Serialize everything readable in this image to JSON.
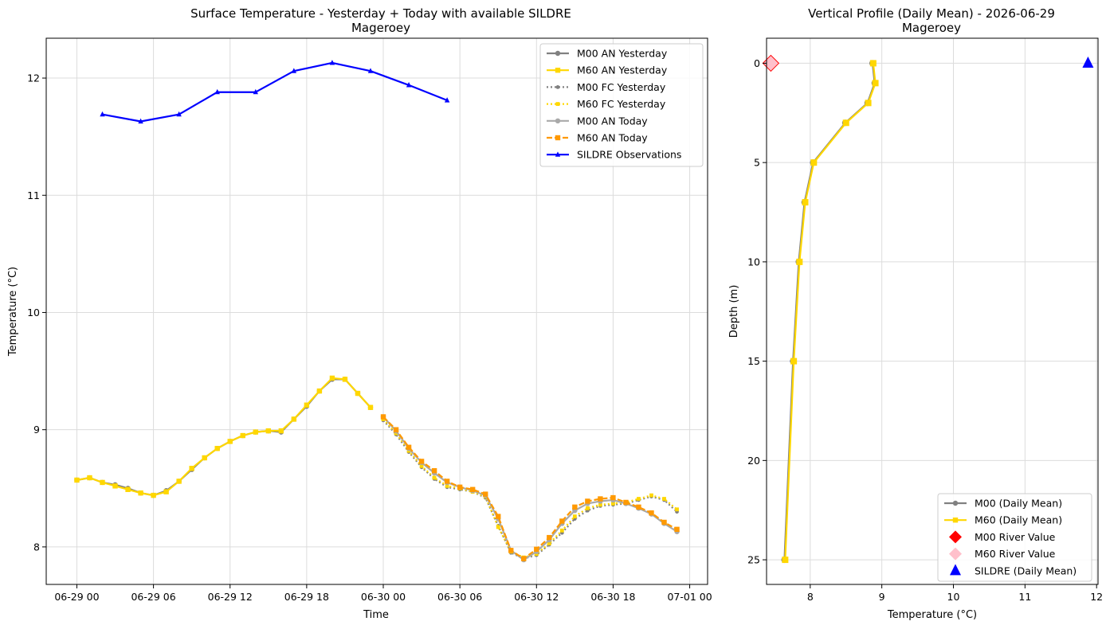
{
  "chart_data": [
    {
      "type": "line",
      "title": "Surface Temperature - Yesterday + Today with available SILDRE",
      "subtitle": "Mageroey",
      "xlabel": "Time",
      "ylabel": "Temperature (°C)",
      "x_unit": "hours from 06-29 00:00",
      "xlim": [
        -2.4,
        49.4
      ],
      "ylim": [
        7.68,
        12.34
      ],
      "x_ticks": [
        0,
        6,
        12,
        18,
        24,
        30,
        36,
        42,
        48
      ],
      "x_tick_labels": [
        "06-29 00",
        "06-29 06",
        "06-29 12",
        "06-29 18",
        "06-30 00",
        "06-30 06",
        "06-30 12",
        "06-30 18",
        "07-01 00"
      ],
      "y_ticks": [
        8,
        9,
        10,
        11,
        12
      ],
      "grid": true,
      "legend_position": "top-right",
      "series": [
        {
          "name": "M00 AN Yesterday",
          "color": "#808080",
          "dash": "solid",
          "marker": "circle",
          "x": [
            0,
            1,
            2,
            3,
            4,
            5,
            6,
            7,
            8,
            9,
            10,
            11,
            12,
            13,
            14,
            15,
            16,
            17,
            18,
            19,
            20,
            21,
            22,
            23
          ],
          "y": [
            8.57,
            8.59,
            8.55,
            8.53,
            8.5,
            8.46,
            8.44,
            8.48,
            8.56,
            8.66,
            8.76,
            8.84,
            8.9,
            8.95,
            8.98,
            8.99,
            8.98,
            9.09,
            9.2,
            9.33,
            9.43,
            9.43,
            9.31,
            9.19
          ]
        },
        {
          "name": "M60 AN Yesterday",
          "color": "#FFD700",
          "dash": "solid",
          "marker": "square",
          "x": [
            0,
            1,
            2,
            3,
            4,
            5,
            6,
            7,
            8,
            9,
            10,
            11,
            12,
            13,
            14,
            15,
            16,
            17,
            18,
            19,
            20,
            21,
            22,
            23
          ],
          "y": [
            8.57,
            8.59,
            8.55,
            8.52,
            8.49,
            8.46,
            8.44,
            8.47,
            8.56,
            8.67,
            8.76,
            8.84,
            8.9,
            8.95,
            8.98,
            8.99,
            8.99,
            9.09,
            9.21,
            9.33,
            9.44,
            9.43,
            9.31,
            9.19
          ]
        },
        {
          "name": "M00 FC Yesterday",
          "color": "#808080",
          "dash": "dotted",
          "marker": "circle",
          "x": [
            24,
            25,
            26,
            27,
            28,
            29,
            30,
            31,
            32,
            33,
            34,
            35,
            36,
            37,
            38,
            39,
            40,
            41,
            42,
            43,
            44,
            45,
            46,
            47
          ],
          "y": [
            9.08,
            8.96,
            8.81,
            8.68,
            8.58,
            8.51,
            8.49,
            8.47,
            8.42,
            8.18,
            7.95,
            7.9,
            7.93,
            8.02,
            8.12,
            8.24,
            8.31,
            8.35,
            8.36,
            8.37,
            8.4,
            8.43,
            8.4,
            8.3
          ]
        },
        {
          "name": "M60 FC Yesterday",
          "color": "#FFD700",
          "dash": "dotted",
          "marker": "square",
          "x": [
            24,
            25,
            26,
            27,
            28,
            29,
            30,
            31,
            32,
            33,
            34,
            35,
            36,
            37,
            38,
            39,
            40,
            41,
            42,
            43,
            44,
            45,
            46,
            47
          ],
          "y": [
            9.09,
            8.97,
            8.82,
            8.69,
            8.59,
            8.52,
            8.5,
            8.47,
            8.43,
            8.17,
            7.96,
            7.91,
            7.94,
            8.03,
            8.14,
            8.26,
            8.33,
            8.36,
            8.37,
            8.38,
            8.41,
            8.44,
            8.41,
            8.32
          ]
        },
        {
          "name": "M00 AN Today",
          "color": "#A9A9A9",
          "dash": "solid",
          "marker": "circle",
          "x": [
            24,
            25,
            26,
            27,
            28,
            29,
            30,
            31,
            32,
            33,
            34,
            35,
            36,
            37,
            38,
            39,
            40,
            41,
            42,
            43,
            44,
            45,
            46,
            47
          ],
          "y": [
            9.11,
            8.99,
            8.84,
            8.72,
            8.63,
            8.55,
            8.51,
            8.48,
            8.44,
            8.24,
            7.97,
            7.89,
            7.96,
            8.06,
            8.2,
            8.31,
            8.37,
            8.39,
            8.4,
            8.37,
            8.33,
            8.28,
            8.2,
            8.13
          ]
        },
        {
          "name": "M60 AN Today",
          "color": "#FF9900",
          "dash": "dashed",
          "marker": "square",
          "x": [
            24,
            25,
            26,
            27,
            28,
            29,
            30,
            31,
            32,
            33,
            34,
            35,
            36,
            37,
            38,
            39,
            40,
            41,
            42,
            43,
            44,
            45,
            46,
            47
          ],
          "y": [
            9.11,
            9.0,
            8.85,
            8.73,
            8.65,
            8.56,
            8.51,
            8.49,
            8.45,
            8.26,
            7.97,
            7.9,
            7.98,
            8.08,
            8.22,
            8.34,
            8.39,
            8.41,
            8.42,
            8.38,
            8.34,
            8.29,
            8.21,
            8.15
          ]
        },
        {
          "name": "SILDRE Observations",
          "color": "#0000FF",
          "dash": "solid",
          "marker": "triangle",
          "x": [
            2,
            5,
            8,
            11,
            14,
            17,
            20,
            23,
            26,
            29
          ],
          "y": [
            11.69,
            11.63,
            11.69,
            11.88,
            11.88,
            12.06,
            12.13,
            12.06,
            11.94,
            11.81
          ]
        }
      ]
    },
    {
      "type": "line",
      "title": "Vertical Profile (Daily Mean) - 2026-06-29",
      "subtitle": "Mageroey",
      "xlabel": "Temperature (°C)",
      "ylabel": "Depth (m)",
      "xlim": [
        7.39,
        12.02
      ],
      "ylim": [
        26.24,
        -1.26
      ],
      "y_inverted": true,
      "x_ticks": [
        8,
        9,
        10,
        11,
        12
      ],
      "y_ticks": [
        0,
        5,
        10,
        15,
        20,
        25
      ],
      "grid": true,
      "legend_position": "bottom-right",
      "series": [
        {
          "name": "M00 (Daily Mean)",
          "color": "#808080",
          "marker": "circle",
          "x": [
            8.87,
            8.9,
            8.8,
            8.49,
            8.04,
            7.92,
            7.84,
            7.76,
            7.64
          ],
          "depth": [
            0,
            1,
            2,
            3,
            5,
            7,
            10,
            15,
            25
          ]
        },
        {
          "name": "M60 (Daily Mean)",
          "color": "#FFD700",
          "marker": "square",
          "x": [
            8.88,
            8.91,
            8.81,
            8.5,
            8.05,
            7.93,
            7.85,
            7.77,
            7.65
          ],
          "depth": [
            0,
            1,
            2,
            3,
            5,
            7,
            10,
            15,
            25
          ]
        }
      ],
      "points": [
        {
          "name": "M00 River Value",
          "color": "#FF0000",
          "marker": "diamond",
          "x": 7.45,
          "depth": 0,
          "hidden": true
        },
        {
          "name": "M60 River Value",
          "color": "#FFC0CB",
          "edge": "#FF0000",
          "marker": "diamond",
          "x": 7.45,
          "depth": 0
        },
        {
          "name": "SILDRE (Daily Mean)",
          "color": "#0000FF",
          "marker": "triangle",
          "x": 11.88,
          "depth": 0
        }
      ]
    }
  ]
}
